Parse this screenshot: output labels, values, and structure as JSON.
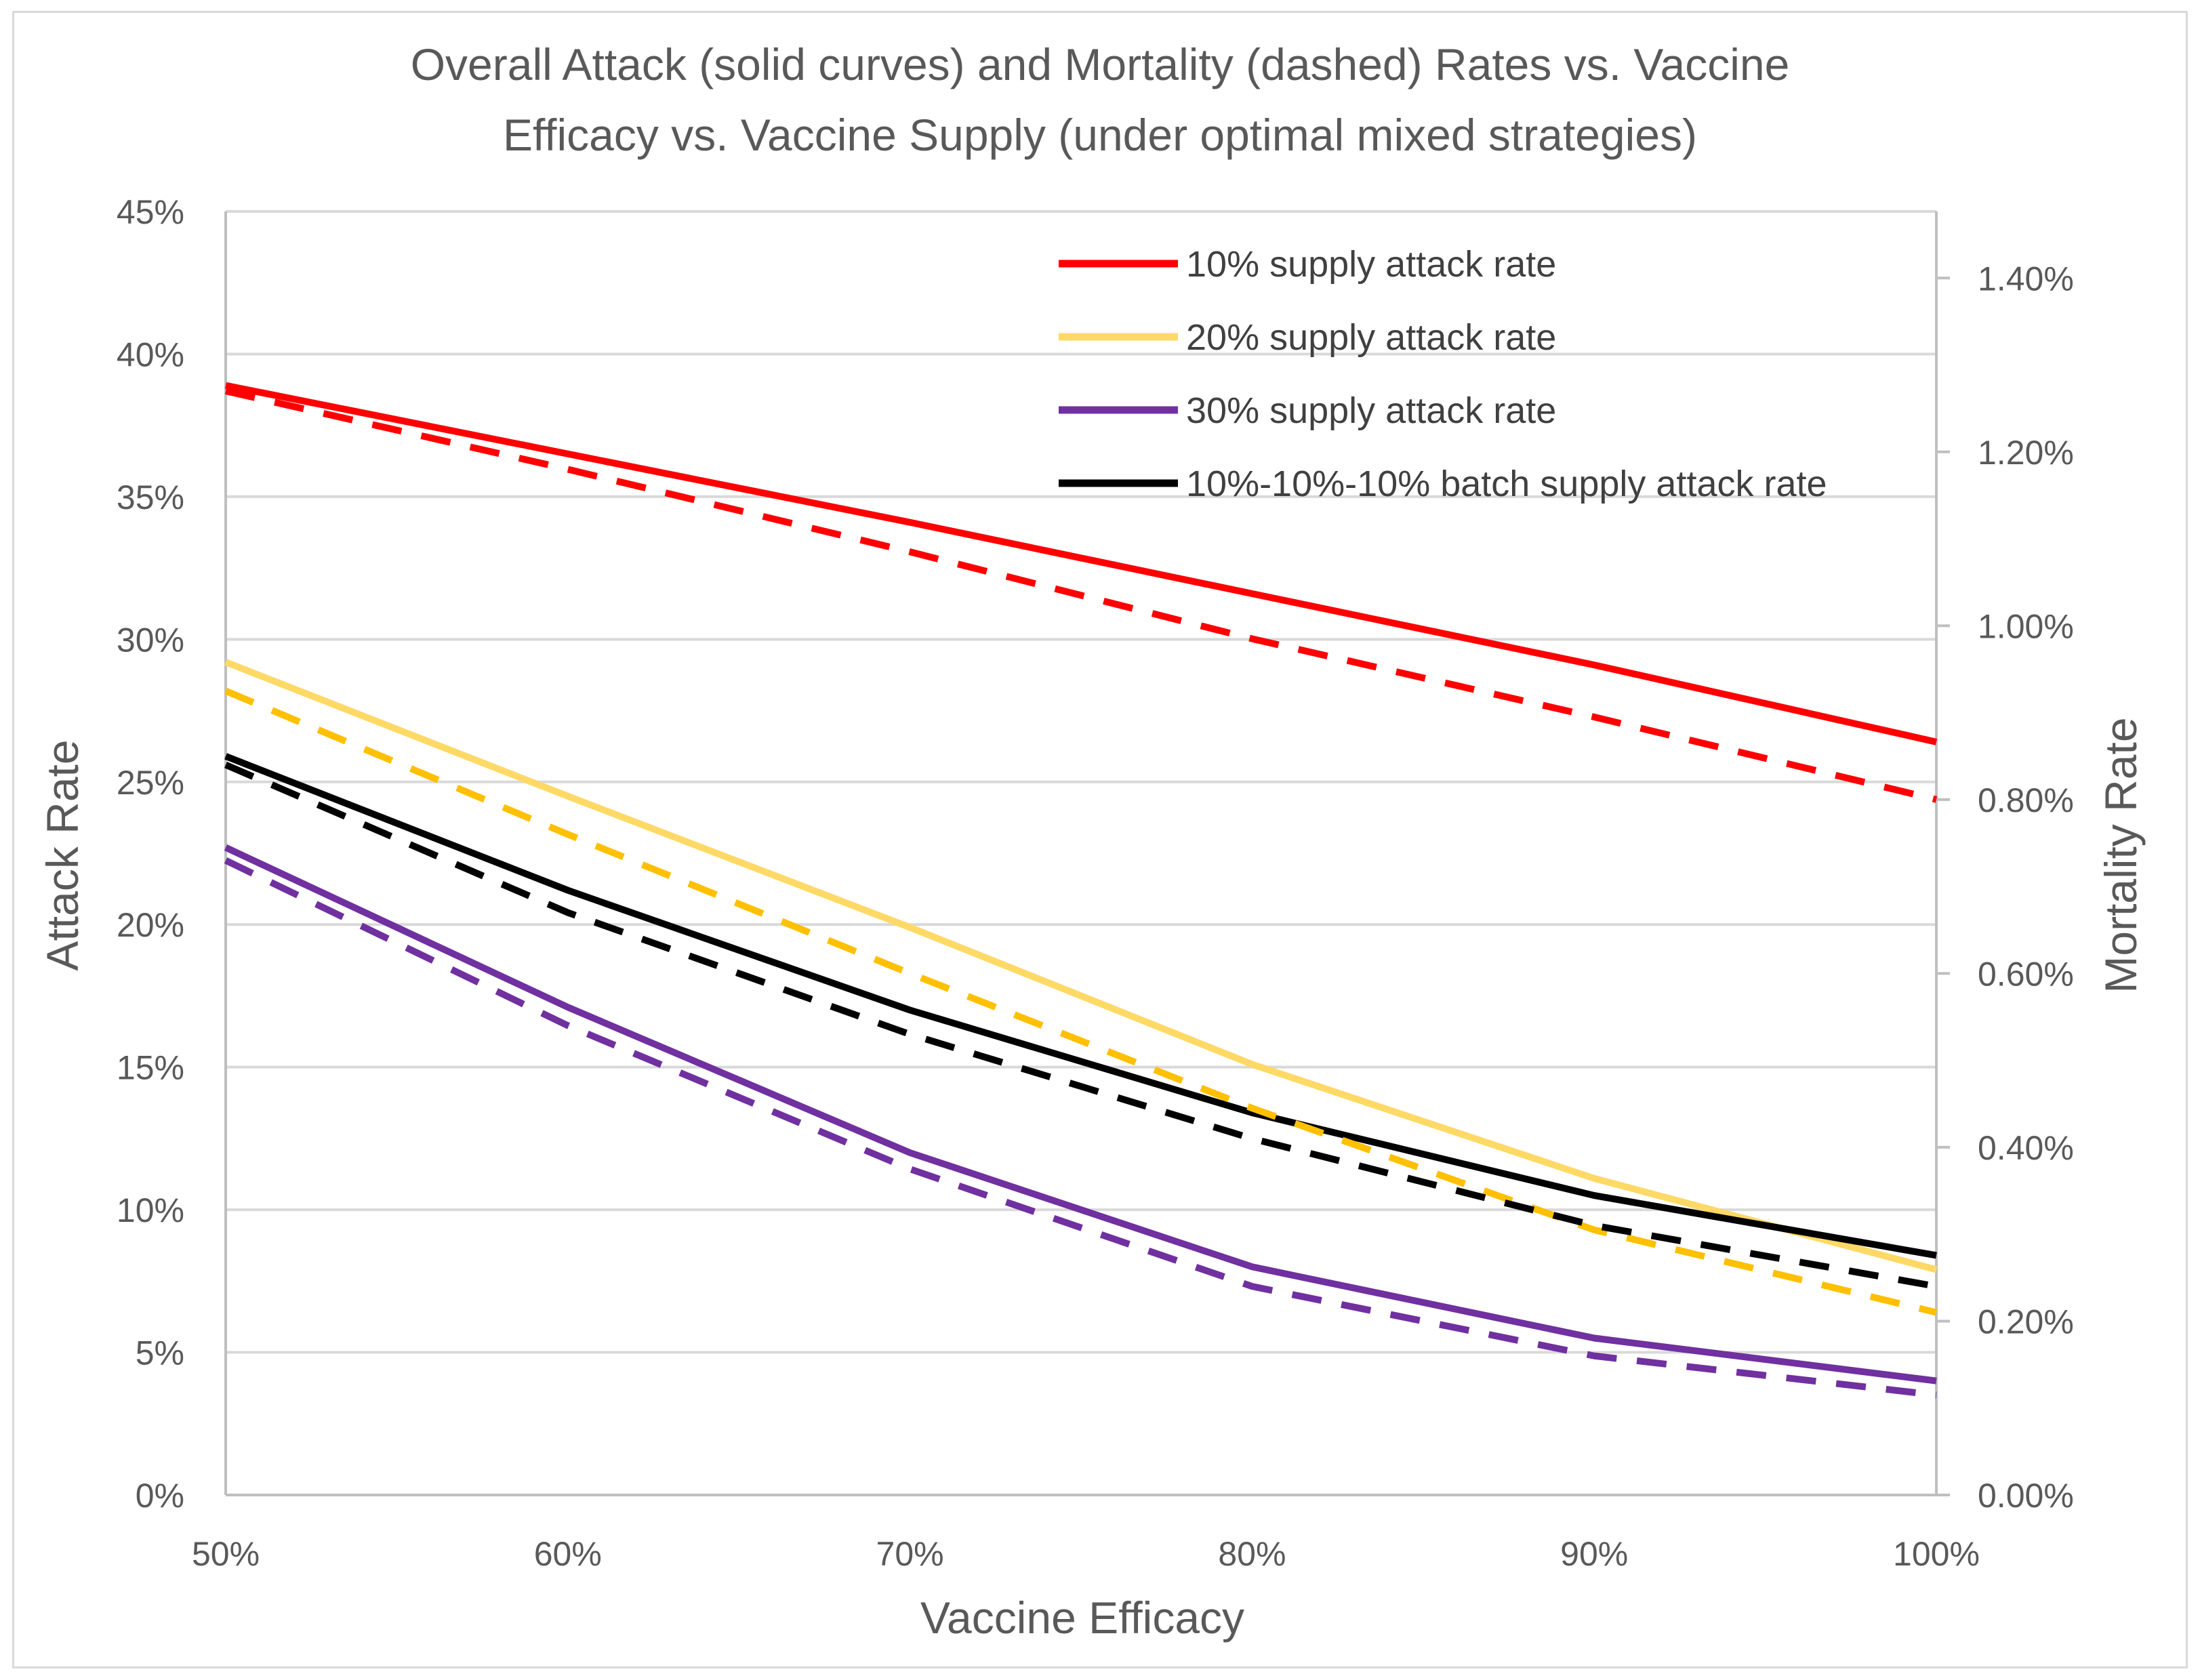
{
  "chart_data": {
    "type": "line",
    "title_lines": [
      "Overall Attack (solid curves) and Mortality (dashed) Rates vs. Vaccine",
      "Efficacy vs. Vaccine Supply (under optimal mixed strategies)"
    ],
    "xlabel": "Vaccine Efficacy",
    "ylabel_left": "Attack Rate",
    "ylabel_right": "Mortality Rate",
    "x": [
      50,
      60,
      70,
      80,
      90,
      100
    ],
    "x_tick_labels": [
      "50%",
      "60%",
      "70%",
      "80%",
      "90%",
      "100%"
    ],
    "xlim": [
      50,
      100
    ],
    "ylim_left": [
      0,
      45
    ],
    "y_left_tick_labels": [
      "0%",
      "5%",
      "10%",
      "15%",
      "20%",
      "25%",
      "30%",
      "35%",
      "40%",
      "45%"
    ],
    "ylim_right": [
      0,
      1.4766
    ],
    "y_right_ticks": [
      0,
      0.2,
      0.4,
      0.6,
      0.8,
      1.0,
      1.2,
      1.4
    ],
    "y_right_tick_labels": [
      "0.00%",
      "0.20%",
      "0.40%",
      "0.60%",
      "0.80%",
      "1.00%",
      "1.20%",
      "1.40%"
    ],
    "grid": true,
    "legend_position": "top-right",
    "series": [
      {
        "name": "10% supply attack rate",
        "axis": "left",
        "style": "solid",
        "color": "#ff0000",
        "values": [
          38.9,
          36.5,
          34.1,
          31.6,
          29.1,
          26.4
        ]
      },
      {
        "name": "20% supply attack rate",
        "axis": "left",
        "style": "solid",
        "color": "#ffd966",
        "values": [
          29.2,
          24.5,
          19.9,
          15.1,
          11.1,
          7.9
        ]
      },
      {
        "name": "30% supply attack rate",
        "axis": "left",
        "style": "solid",
        "color": "#7030a0",
        "values": [
          22.7,
          17.1,
          12.0,
          8.0,
          5.5,
          4.0
        ]
      },
      {
        "name": "10%-10%-10% batch supply attack rate",
        "axis": "left",
        "style": "solid",
        "color": "#000000",
        "values": [
          25.9,
          21.2,
          17.0,
          13.4,
          10.5,
          8.4
        ]
      },
      {
        "name": "10% supply mortality rate",
        "axis": "right",
        "style": "dashed",
        "color": "#ff0000",
        "values": [
          1.27,
          1.18,
          1.085,
          0.985,
          0.895,
          0.8
        ]
      },
      {
        "name": "20% supply mortality rate",
        "axis": "right",
        "style": "dashed",
        "color": "#ffc000",
        "values": [
          0.925,
          0.76,
          0.6,
          0.445,
          0.305,
          0.21
        ]
      },
      {
        "name": "30% supply mortality rate",
        "axis": "right",
        "style": "dashed",
        "color": "#7030a0",
        "values": [
          0.73,
          0.54,
          0.375,
          0.24,
          0.16,
          0.115
        ]
      },
      {
        "name": "10%-10%-10% batch supply mortality rate",
        "axis": "right",
        "style": "dashed",
        "color": "#000000",
        "values": [
          0.84,
          0.67,
          0.53,
          0.41,
          0.31,
          0.24
        ]
      }
    ],
    "legend": [
      {
        "label": "10% supply attack rate",
        "color": "#ff0000"
      },
      {
        "label": "20% supply attack rate",
        "color": "#ffd966"
      },
      {
        "label": "30% supply attack rate",
        "color": "#7030a0"
      },
      {
        "label": "10%-10%-10% batch supply attack rate",
        "color": "#000000"
      }
    ]
  }
}
